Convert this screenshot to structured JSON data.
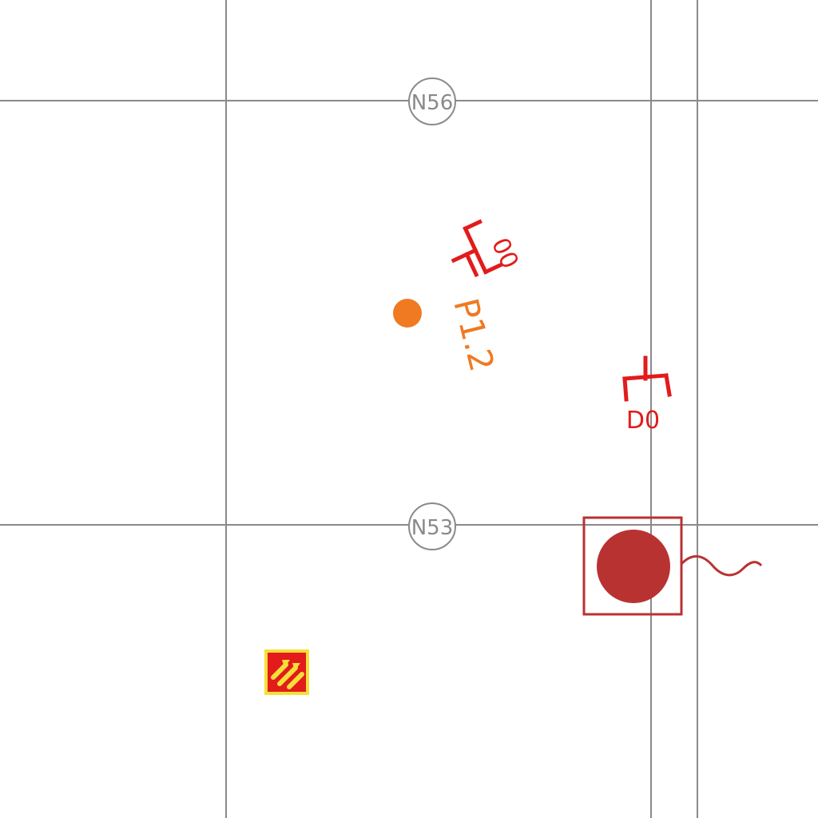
{
  "colors": {
    "grid_line": "#8a8a8a",
    "node_circle": "#8a8a8a",
    "device_red": "#e31b1b",
    "pole_orange": "#f07a22",
    "transformer_dark_red": "#b93232",
    "warning_yellow": "#f5e03a"
  },
  "nodes": [
    {
      "label": "N56"
    },
    {
      "label": "N53"
    }
  ],
  "devices": [
    {
      "label": "00",
      "icon": "fuse-symbol-icon"
    },
    {
      "label": "D0",
      "icon": "fuse-symbol-icon"
    }
  ],
  "pole": {
    "label": "P1.2",
    "icon": "pole-dot-icon"
  },
  "transformer": {
    "icon": "transformer-symbol-icon"
  },
  "hazard": {
    "icon": "high-voltage-warning-icon"
  }
}
